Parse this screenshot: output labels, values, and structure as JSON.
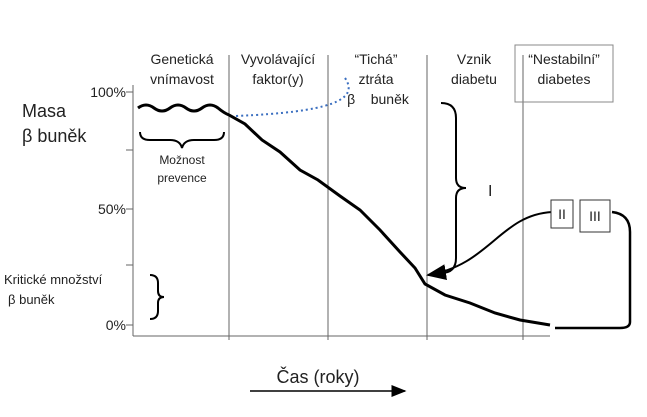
{
  "y_axis": {
    "title": [
      "Masa",
      "β buněk"
    ],
    "ticks": [
      "100%",
      "50%",
      "0%"
    ]
  },
  "phases": [
    {
      "label": [
        "Genetická",
        "vnímavost"
      ]
    },
    {
      "label": [
        "Vyvolávající",
        "faktor(y)"
      ]
    },
    {
      "label": [
        "“Tichá”",
        "ztráta",
        "β    buněk"
      ]
    },
    {
      "label": [
        "Vznik",
        "diabetu"
      ]
    },
    {
      "label": [
        "“Nestabilní”",
        "diabetes"
      ]
    }
  ],
  "annotations": {
    "prevention": [
      "Možnost",
      "prevence"
    ],
    "critical": [
      "Kritické množství",
      "β buněk"
    ],
    "stage_1": "I",
    "stage_2": "II",
    "stage_3": "III"
  },
  "x_axis": {
    "title": "Čas (roky)"
  }
}
